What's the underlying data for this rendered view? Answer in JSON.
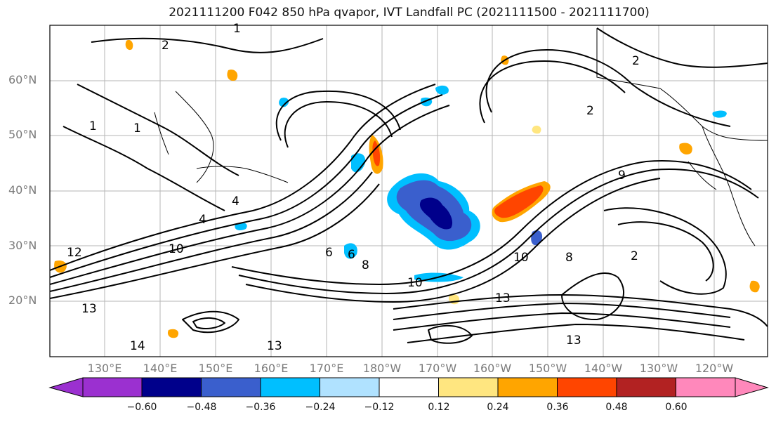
{
  "title": "2021111200 F042 850 hPa qvapor, IVT Landfall PC (2021111500 - 2021111700)",
  "lat_labels": [
    "60°N",
    "50°N",
    "40°N",
    "30°N",
    "20°N"
  ],
  "lon_labels": [
    "130°E",
    "140°E",
    "150°E",
    "160°E",
    "170°E",
    "180°W",
    "170°W",
    "160°W",
    "150°W",
    "140°W",
    "130°W",
    "120°W"
  ],
  "contour_labels": [
    "1",
    "2",
    "1",
    "1",
    "4",
    "4",
    "6",
    "6",
    "8",
    "10",
    "10",
    "12",
    "13",
    "14",
    "13",
    "13",
    "2",
    "2",
    "2",
    "8",
    "9",
    "10",
    "13"
  ],
  "colorbar": {
    "ticks": [
      "−0.60",
      "−0.48",
      "−0.36",
      "−0.24",
      "−0.12",
      "0.12",
      "0.24",
      "0.36",
      "0.48",
      "0.60"
    ],
    "colors": [
      "#9b30d0",
      "#00008b",
      "#3a5fcd",
      "#00bfff",
      "#b0e2ff",
      "#ffffff",
      "#ffe680",
      "#ffa500",
      "#ff4500",
      "#b22222",
      "#ff88bb"
    ]
  }
}
